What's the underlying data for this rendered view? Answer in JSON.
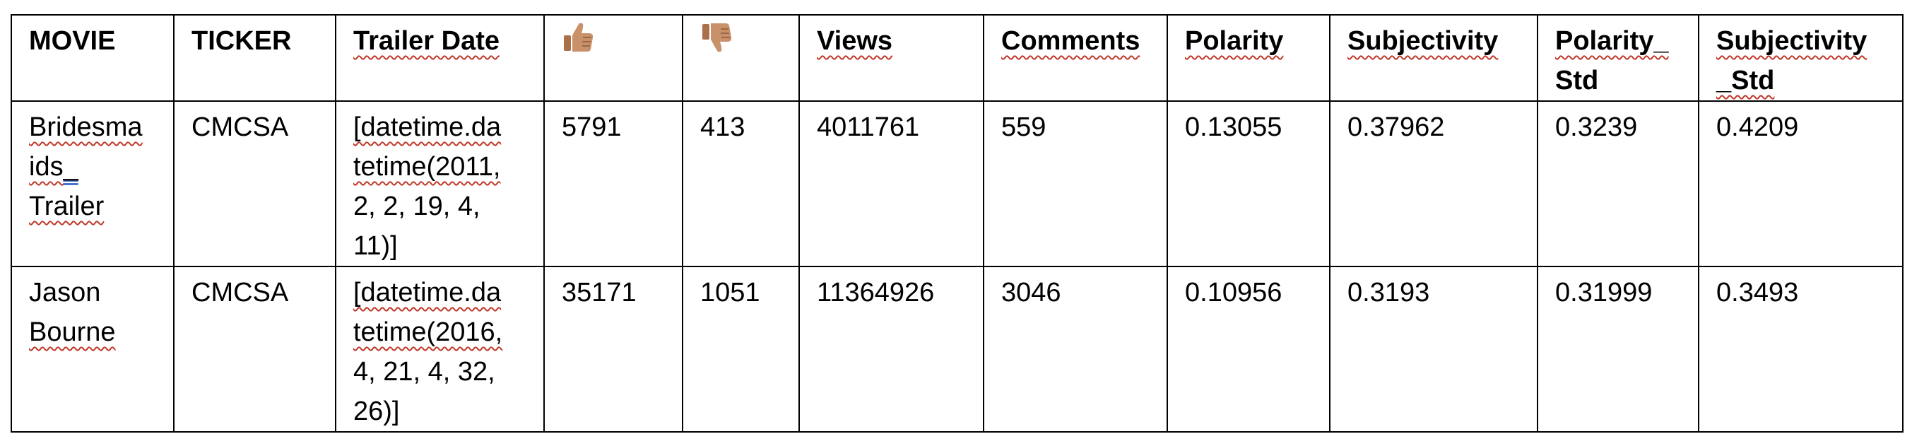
{
  "table": {
    "headers": {
      "movie": "MOVIE",
      "ticker": "TICKER",
      "trailer_date": "Trailer Date",
      "likes_icon": "thumbs-up",
      "dislikes_icon": "thumbs-down",
      "views": "Views",
      "comments": "Comments",
      "polarity": "Polarity",
      "subjectivity": "Subjectivity",
      "polarity_std_a": "Polarity_",
      "polarity_std_b": "Std",
      "subjectivity_std_a": "Subjectivity",
      "subjectivity_std_b": "_Std"
    },
    "rows": [
      {
        "movie_a": "Bridesma",
        "movie_b": "ids",
        "movie_c": "_",
        "movie_d": "Trailer",
        "ticker": "CMCSA",
        "date_a": "[datetime.da",
        "date_b": "tetime(2011,",
        "date_c": "2, 2, 19, 4,",
        "date_d": "11)]",
        "likes": "5791",
        "dislikes": "413",
        "views": "4011761",
        "comments": "559",
        "polarity": "0.13055",
        "subjectivity": "0.37962",
        "polarity_std": "0.3239",
        "subjectivity_std": "0.4209"
      },
      {
        "movie_a": "Jason",
        "movie_b": "Bourne",
        "ticker": "CMCSA",
        "date_a": "[datetime.da",
        "date_b": "tetime(2016,",
        "date_c": "4, 21, 4, 32,",
        "date_d": "26)]",
        "likes": "35171",
        "dislikes": "1051",
        "views": "11364926",
        "comments": "3046",
        "polarity": "0.10956",
        "subjectivity": "0.3193",
        "polarity_std": "0.31999",
        "subjectivity_std": "0.3493"
      }
    ]
  },
  "colors": {
    "thumb_skin": "#c8916a",
    "spellcheck_underline": "#c0392b",
    "grammar_underline": "#4a73c9"
  }
}
